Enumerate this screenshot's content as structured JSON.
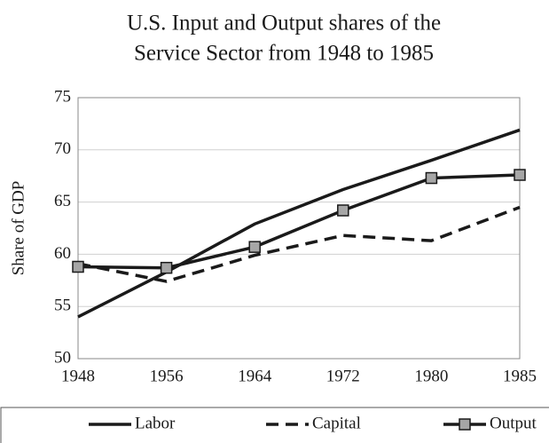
{
  "chart_data": {
    "type": "line",
    "title": [
      "U.S. Input and Output shares of the",
      "Service Sector from 1948 to 1985"
    ],
    "y_label": "Share of GDP",
    "categories": [
      "1948",
      "1956",
      "1964",
      "1972",
      "1980",
      "1985"
    ],
    "series": [
      {
        "name": "Labor",
        "color": "#1a1a1a",
        "dash": "solid",
        "marker": false,
        "values": [
          54.0,
          58.3,
          62.9,
          66.2,
          69.0,
          71.9
        ]
      },
      {
        "name": "Capital",
        "color": "#1a1a1a",
        "dash": "dashed",
        "marker": false,
        "values": [
          59.1,
          57.4,
          59.9,
          61.8,
          61.3,
          64.5
        ]
      },
      {
        "name": "Output",
        "color": "#1a1a1a",
        "dash": "solid",
        "marker": true,
        "marker_color": "#a6a6a6",
        "values": [
          58.8,
          58.7,
          60.7,
          64.2,
          67.3,
          67.6
        ]
      }
    ],
    "ylim": [
      50,
      75
    ],
    "yticks": [
      50,
      55,
      60,
      65,
      70,
      75
    ],
    "grid": true
  }
}
